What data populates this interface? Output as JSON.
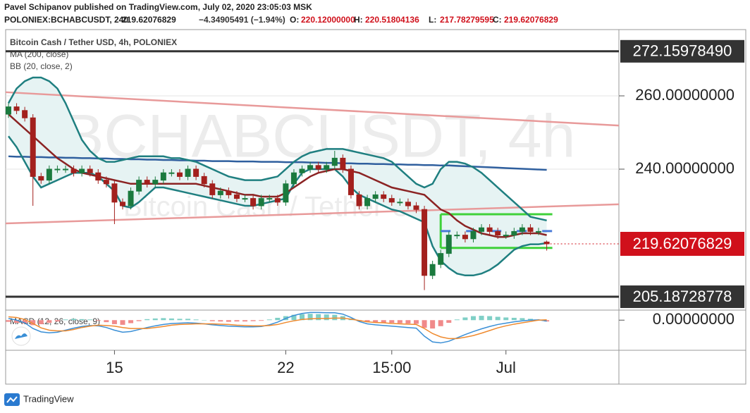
{
  "header": {
    "publisher": "Pavel  Schipanov published on TradingView.com, July 02, 2020 23:05:03 MSK",
    "symbol": "POLONIEX:BCHABCUSDT, 240",
    "price": "219.62076829",
    "change": "−4.34905491 (−1.94%)",
    "ohlc": [
      {
        "label": "O:",
        "value": "220.12000000"
      },
      {
        "label": "H:",
        "value": "220.51804136"
      },
      {
        "label": "L:",
        "value": "217.78279595"
      },
      {
        "label": "C:",
        "value": "219.62076829"
      }
    ]
  },
  "chart_data": {
    "type": "candlestick",
    "legend": [
      "Bitcoin Cash / Tether USD, 4h, POLONIEX",
      "MA (200, close)",
      "BB (20, close, 2)"
    ],
    "watermark": [
      "BCHABCUSDT, 4h",
      "Bitcoin Cash / Tether USD"
    ],
    "categories": [
      null,
      null,
      null,
      null,
      null,
      null,
      null,
      null,
      null,
      null,
      null,
      null,
      null,
      "15",
      null,
      null,
      null,
      null,
      null,
      null,
      null,
      null,
      null,
      null,
      null,
      null,
      null,
      null,
      null,
      null,
      null,
      null,
      null,
      null,
      "22",
      null,
      null,
      null,
      null,
      null,
      null,
      null,
      null,
      null,
      null,
      null,
      null,
      "15:00",
      null,
      null,
      null,
      null,
      null,
      null,
      null,
      null,
      null,
      null,
      null,
      null,
      null,
      "Jul",
      null,
      null,
      null,
      null,
      null
    ],
    "open": [
      255,
      257,
      256,
      254,
      238,
      237,
      240,
      240,
      240,
      239,
      240,
      239,
      237,
      236,
      231,
      230,
      234,
      237,
      236,
      237,
      239,
      239,
      238,
      240,
      238,
      236,
      233,
      234,
      233,
      232,
      232,
      230,
      232,
      232,
      231,
      236,
      239,
      240,
      241,
      240,
      241,
      243,
      240,
      233,
      230,
      232,
      233,
      232,
      231,
      231,
      230,
      229,
      211,
      214,
      217,
      222,
      222,
      221,
      223,
      224,
      223,
      222,
      222,
      223,
      224,
      223,
      220.12
    ],
    "high": [
      258,
      258,
      257,
      255,
      239,
      241,
      241,
      241,
      241,
      241,
      241,
      240,
      238,
      237,
      232,
      235,
      238,
      238,
      238,
      240,
      240,
      240,
      241,
      241,
      239,
      237,
      235,
      235,
      234,
      233,
      233,
      233,
      233,
      233,
      237,
      240,
      241,
      242,
      242,
      242,
      245,
      244,
      241,
      234,
      233,
      234,
      234,
      233,
      232,
      232,
      231,
      230,
      215,
      218,
      223,
      223,
      223,
      224,
      225,
      225,
      224,
      223,
      224,
      225,
      225,
      224,
      220.52
    ],
    "low": [
      254,
      255,
      253,
      230,
      236,
      236,
      239,
      239,
      238,
      238,
      238,
      236,
      235,
      225,
      229,
      229,
      233,
      235,
      235,
      236,
      238,
      237,
      237,
      237,
      235,
      232,
      232,
      232,
      231,
      231,
      229,
      229,
      231,
      230,
      230,
      235,
      238,
      239,
      239,
      239,
      240,
      239,
      232,
      229,
      229,
      231,
      231,
      230,
      230,
      229,
      228,
      207,
      210,
      213,
      216,
      221,
      220,
      220,
      222,
      222,
      221,
      221,
      221,
      222,
      222,
      222,
      217.78
    ],
    "close": [
      257,
      256,
      254,
      238,
      237,
      240,
      240,
      240,
      239,
      240,
      239,
      237,
      236,
      231,
      230,
      234,
      237,
      236,
      237,
      239,
      239,
      238,
      240,
      238,
      236,
      233,
      234,
      233,
      232,
      232,
      230,
      232,
      232,
      231,
      236,
      239,
      240,
      241,
      240,
      241,
      243,
      240,
      233,
      230,
      232,
      233,
      232,
      231,
      231,
      230,
      229,
      211,
      214,
      217,
      222,
      222,
      221,
      223,
      224,
      223,
      222,
      222,
      223,
      224,
      223,
      223,
      219.62076829
    ],
    "up_color": "#1b7a3e",
    "down_color": "#a3201d",
    "ylim": [
      201.54,
      278.08
    ],
    "yticks": [
      {
        "value": 240,
        "label": "240.00000000"
      },
      {
        "value": 260,
        "label": "260.00000000"
      }
    ],
    "ma": {
      "color": "#2f5f9e",
      "values": [
        243.5,
        243.4,
        243.4,
        243.3,
        243.3,
        243.2,
        243.2,
        243.1,
        243.1,
        243.0,
        243.0,
        242.9,
        242.9,
        242.8,
        242.8,
        242.7,
        242.7,
        242.6,
        242.6,
        242.5,
        242.5,
        242.4,
        242.4,
        242.3,
        242.3,
        242.2,
        242.2,
        242.2,
        242.1,
        242.1,
        242.1,
        242.0,
        242.0,
        242.0,
        241.9,
        241.9,
        241.9,
        241.8,
        241.8,
        241.7,
        241.7,
        241.6,
        241.6,
        241.5,
        241.5,
        241.4,
        241.4,
        241.3,
        241.3,
        241.2,
        241.2,
        241.1,
        241.1,
        241.0,
        241.0,
        240.9,
        240.8,
        240.7,
        240.6,
        240.5,
        240.4,
        240.3,
        240.2,
        240.1,
        240.0,
        239.9,
        239.8
      ]
    },
    "bb": {
      "color": "#1f7f80",
      "basis_color": "#8b2323",
      "fill": "#e6f3f3",
      "basis": [
        255,
        253,
        251,
        249,
        247,
        245,
        243,
        241.5,
        240,
        239,
        238.5,
        238,
        237.5,
        237,
        236.5,
        236,
        236,
        236,
        236,
        236,
        236,
        236,
        236,
        236,
        235.5,
        235,
        234.5,
        234,
        233.5,
        233,
        233,
        232.5,
        232.5,
        232.5,
        233.5,
        235,
        236.5,
        238,
        239,
        239.5,
        240,
        240,
        239.5,
        239,
        238,
        237,
        236,
        235,
        234.5,
        234,
        233.5,
        233,
        231,
        229,
        228,
        226,
        224.5,
        223.5,
        222.5,
        222,
        221.5,
        221.5,
        222,
        222.5,
        222.5,
        222.5,
        222
      ],
      "upper": [
        258,
        262,
        264,
        265,
        265,
        264,
        262,
        258,
        253,
        248,
        245,
        243,
        242,
        242,
        242.5,
        243,
        243.5,
        243.5,
        243.5,
        243.5,
        243,
        243,
        242.5,
        242,
        241,
        240,
        239,
        238,
        237.5,
        237,
        237,
        237,
        237.5,
        238,
        240,
        242,
        243.5,
        244.5,
        245,
        245.5,
        245.5,
        245.5,
        245,
        244.5,
        244,
        243.5,
        243,
        242,
        240,
        238,
        236,
        235,
        236,
        240,
        242,
        242,
        241.5,
        240.5,
        239,
        237,
        235,
        233,
        231,
        229,
        227,
        226.5,
        226
      ],
      "lower": [
        249,
        246,
        242,
        238,
        235,
        236,
        237,
        238,
        239,
        239,
        239,
        238,
        236,
        234,
        230,
        229.5,
        231,
        233,
        235,
        235,
        234.5,
        234,
        233.5,
        233,
        232.5,
        232,
        231.5,
        231,
        230.5,
        230,
        230,
        230.5,
        231,
        231.5,
        232,
        236,
        239,
        240,
        240,
        240,
        240,
        238,
        235,
        233,
        232,
        231,
        230,
        229,
        228.5,
        227.5,
        226.5,
        225.5,
        219,
        215,
        213,
        211.5,
        211,
        211,
        211.5,
        212.5,
        214,
        216,
        218,
        219,
        219.5,
        219.5,
        219.8
      ]
    },
    "hlines": [
      {
        "value": 272.1597849,
        "label": "272.15978490"
      },
      {
        "value": 205.18728778,
        "label": "205.18728778"
      }
    ],
    "last_price": {
      "value": 219.62076829,
      "label": "219.62076829",
      "color": "#d0101b"
    },
    "trendlines": [
      {
        "values": [
          261,
          251.9
        ],
        "color": "#e89a9a"
      },
      {
        "values": [
          225.2,
          230.4
        ],
        "color": "#e89a9a"
      }
    ],
    "range_box": {
      "values": [
        227.7,
        218.5
      ],
      "color": "#3fd13a",
      "mid": 223.1,
      "mid_color": "#4a7bd8"
    },
    "macd": {
      "title": "MACD (12, 26, close, 9)",
      "ylim": [
        -9,
        3
      ],
      "yticks": [
        {
          "value": 0,
          "label": "0.00000000"
        }
      ],
      "up_color": "#7fcfc6",
      "down_color": "#f08a8a",
      "macd_color": "#3a8fd6",
      "signal_color": "#ef8a2e",
      "histogram": [
        -0.5,
        -0.8,
        -1,
        -1.5,
        -1.2,
        -0.8,
        -0.4,
        0.2,
        0.4,
        0.3,
        0.2,
        -0.2,
        -0.6,
        -1.2,
        -1.4,
        -0.9,
        -0.3,
        0.3,
        0.5,
        0.6,
        0.5,
        0.4,
        0.4,
        0.2,
        0,
        -0.3,
        -0.4,
        -0.5,
        -0.4,
        -0.4,
        -0.3,
        -0.2,
        0.2,
        0.7,
        1.2,
        1.6,
        1.8,
        1.9,
        1.8,
        1.7,
        1.6,
        1.2,
        0.5,
        -0.3,
        -0.6,
        -0.7,
        -0.8,
        -0.8,
        -0.9,
        -1,
        -1.1,
        -2.3,
        -2.5,
        -1.8,
        -0.8,
        0.2,
        0.8,
        1.2,
        1.3,
        1.2,
        1.0,
        0.8,
        0.7,
        0.6,
        0.4,
        0.1,
        -0.4
      ],
      "line": [
        0.5,
        0,
        -0.8,
        -2.5,
        -3.5,
        -3.8,
        -3.6,
        -3,
        -2.4,
        -1.9,
        -1.6,
        -1.7,
        -2.2,
        -3,
        -3.6,
        -3.4,
        -2.8,
        -2.2,
        -1.7,
        -1.3,
        -1,
        -0.9,
        -0.8,
        -0.9,
        -1.1,
        -1.4,
        -1.6,
        -1.8,
        -1.9,
        -2,
        -2,
        -1.9,
        -1.4,
        -0.6,
        0.5,
        1.4,
        2,
        2.3,
        2.3,
        2.2,
        2.2,
        1.8,
        0.8,
        -0.4,
        -1.1,
        -1.4,
        -1.6,
        -1.8,
        -2,
        -2.2,
        -2.4,
        -4.8,
        -6.5,
        -6.8,
        -6.3,
        -5.3,
        -4.3,
        -3.4,
        -2.6,
        -1.9,
        -1.3,
        -0.9,
        -0.5,
        -0.2,
        0,
        0.1,
        -0.3
      ],
      "signal": [
        1,
        0.8,
        0.2,
        -1,
        -2.3,
        -3,
        -3.2,
        -3.2,
        -2.8,
        -2.2,
        -1.8,
        -1.5,
        -1.6,
        -1.8,
        -2.2,
        -2.5,
        -2.5,
        -2.5,
        -2.2,
        -1.9,
        -1.5,
        -1.3,
        -1.2,
        -1.1,
        -1.1,
        -1.1,
        -1.2,
        -1.3,
        -1.5,
        -1.6,
        -1.7,
        -1.7,
        -1.6,
        -1.3,
        -0.7,
        -0.2,
        0.2,
        0.4,
        0.5,
        0.5,
        0.6,
        0.6,
        0.3,
        -0.1,
        -0.5,
        -0.7,
        -0.8,
        -1,
        -1.1,
        -1.2,
        -1.3,
        -2.5,
        -4,
        -5,
        -5.5,
        -5.5,
        -5.1,
        -4.6,
        -3.9,
        -3.1,
        -2.3,
        -1.7,
        -1.2,
        -0.8,
        -0.4,
        0,
        0.1
      ]
    }
  },
  "footer": {
    "brand": "TradingView"
  }
}
